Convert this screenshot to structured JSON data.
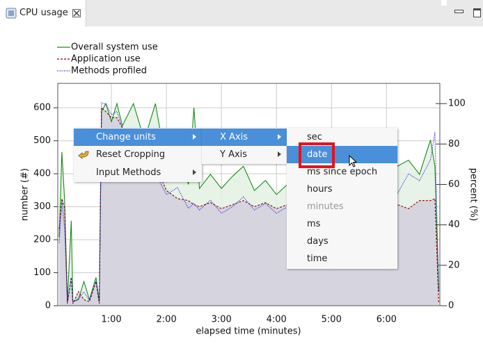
{
  "tab": {
    "title": "CPU usage"
  },
  "chart_data": {
    "type": "line",
    "xlabel": "elapsed time (minutes)",
    "ylabel": "number (#)",
    "y2label": "percent (%)",
    "x": [
      0.05,
      0.1,
      0.15,
      0.2,
      0.27,
      0.3,
      0.4,
      0.5,
      0.6,
      0.72,
      0.78,
      0.82,
      0.9,
      1.0,
      1.1,
      1.2,
      1.4,
      1.6,
      1.8,
      2.0,
      2.2,
      2.4,
      2.5,
      2.6,
      2.8,
      3.0,
      3.2,
      3.4,
      3.6,
      3.8,
      4.0,
      4.2,
      4.4,
      4.6,
      4.8,
      5.0,
      5.2,
      5.4,
      5.6,
      5.8,
      6.0,
      6.2,
      6.4,
      6.6,
      6.8,
      6.88,
      6.95
    ],
    "series": [
      {
        "name": "Overall system use",
        "color": "#1a8a1a",
        "fill": "#e3f1e3",
        "dash": "none",
        "axis": "y2",
        "values": [
          34,
          76,
          52,
          2,
          42,
          2,
          3,
          12,
          3,
          14,
          2,
          96,
          100,
          91,
          100,
          89,
          100,
          82,
          100,
          69,
          79,
          60,
          98,
          58,
          65,
          58,
          64,
          69,
          57,
          62,
          55,
          60,
          58,
          62,
          58,
          60,
          64,
          57,
          62,
          69,
          65,
          69,
          72,
          65,
          82,
          69,
          7
        ]
      },
      {
        "name": "Application use",
        "color": "#8b0000",
        "fill": "#d2cfdd",
        "dash": "3,2",
        "axis": "y2",
        "values": [
          38,
          53,
          48,
          1,
          14,
          1,
          7,
          3,
          2,
          12,
          1,
          98,
          96,
          93,
          93,
          88,
          86,
          69,
          70,
          57,
          53,
          52,
          50,
          49,
          51,
          48,
          50,
          52,
          49,
          51,
          48,
          50,
          49,
          51,
          48,
          50,
          52,
          49,
          50,
          51,
          49,
          50,
          48,
          52,
          52,
          53,
          1
        ]
      },
      {
        "name": "Methods profiled",
        "color": "#1010dd",
        "dash": "1,1.5",
        "axis": "y",
        "values": [
          190,
          316,
          232,
          11,
          84,
          11,
          21,
          42,
          15,
          74,
          6,
          615,
          611,
          579,
          589,
          537,
          505,
          442,
          400,
          337,
          358,
          295,
          310,
          290,
          320,
          280,
          300,
          330,
          290,
          310,
          280,
          300,
          295,
          320,
          285,
          305,
          330,
          290,
          310,
          300,
          320,
          340,
          400,
          379,
          442,
          526,
          42
        ]
      }
    ],
    "xlim": [
      0.025,
      6.97
    ],
    "xticks": [
      {
        "value": 1,
        "label": "1:00"
      },
      {
        "value": 2,
        "label": "2:00"
      },
      {
        "value": 3,
        "label": "3:00"
      },
      {
        "value": 4,
        "label": "4:00"
      },
      {
        "value": 5,
        "label": "5:00"
      },
      {
        "value": 6,
        "label": "6:00"
      }
    ],
    "ylim": [
      0,
      674
    ],
    "yticks": [
      0,
      100,
      200,
      300,
      400,
      500,
      600
    ],
    "y2lim": [
      0,
      110
    ],
    "y2ticks": [
      0,
      20,
      40,
      60,
      80,
      100
    ],
    "grid": true,
    "legend": "top-left"
  },
  "context_menu": {
    "items": [
      "Change units",
      "Reset Cropping",
      "Input Methods"
    ]
  },
  "units_menu": {
    "items": [
      "X Axis",
      "Y Axis"
    ]
  },
  "x_units_menu": {
    "items": [
      "sec",
      "date",
      "ms since epoch",
      "hours",
      "minutes",
      "ms",
      "days",
      "time"
    ]
  }
}
